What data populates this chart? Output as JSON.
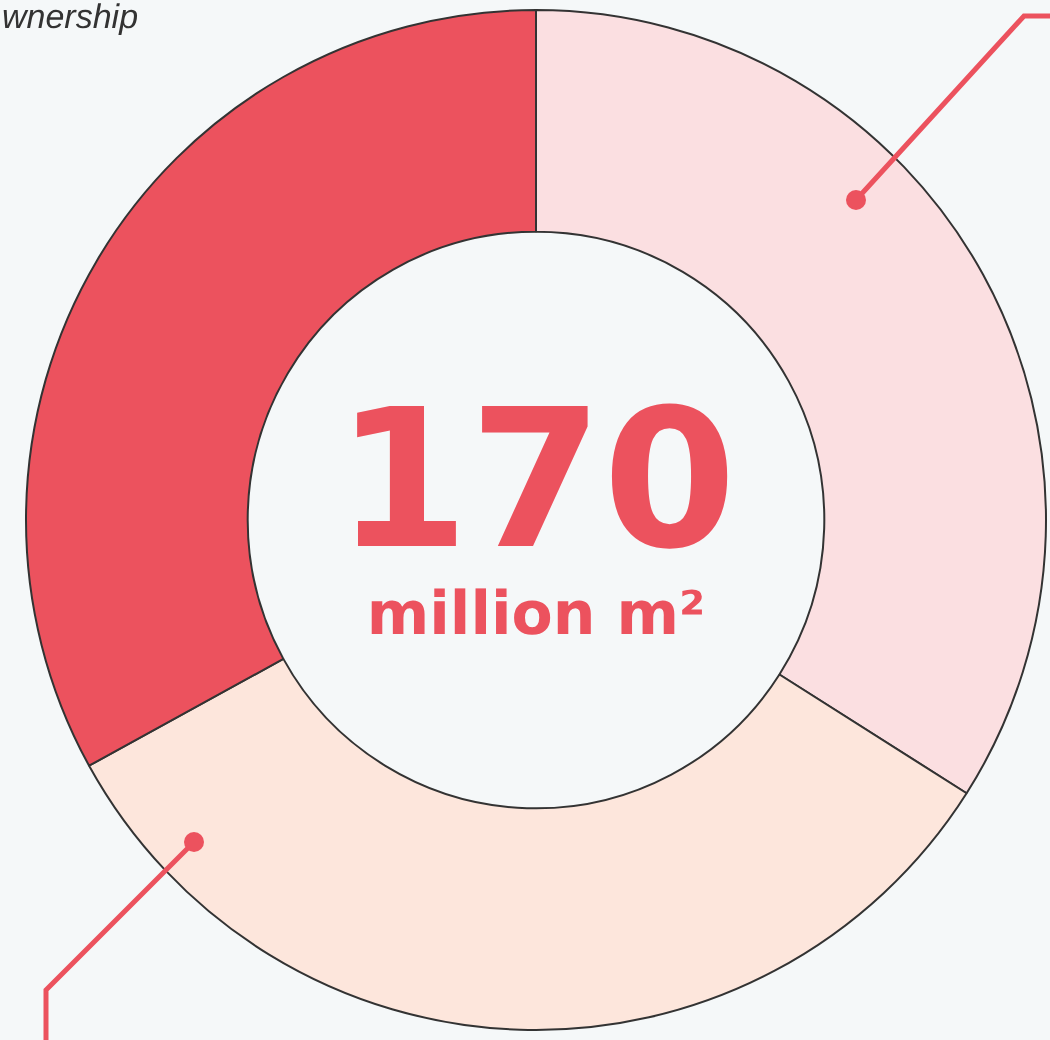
{
  "chart_data": {
    "type": "donut",
    "title": "wnership",
    "categories": [
      null,
      null,
      null
    ],
    "values": [
      34,
      33,
      33
    ],
    "colors": [
      "#fbdfe1",
      "#fde6dc",
      "#ec525e"
    ],
    "annotations": [
      "170",
      "million m²"
    ],
    "legend": false
  }
}
